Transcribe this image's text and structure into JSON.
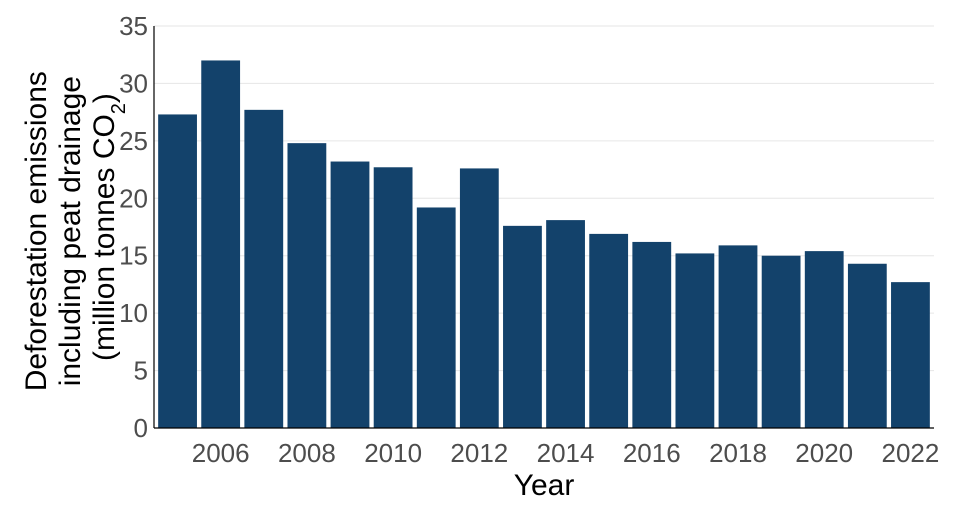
{
  "chart_data": {
    "type": "bar",
    "title": "",
    "xlabel": "Year",
    "ylabel_lines": [
      "Deforestation emissions",
      "including peat drainage"
    ],
    "ylabel_unit": {
      "prefix": "(million tonnes CO",
      "subscript": "2",
      "suffix": ")"
    },
    "categories": [
      2005,
      2006,
      2007,
      2008,
      2009,
      2010,
      2011,
      2012,
      2013,
      2014,
      2015,
      2016,
      2017,
      2018,
      2019,
      2020,
      2021,
      2022
    ],
    "values": [
      27.3,
      32.0,
      27.7,
      24.8,
      23.2,
      22.7,
      19.2,
      22.6,
      17.6,
      18.1,
      16.9,
      16.2,
      15.2,
      15.9,
      15.0,
      15.4,
      14.3,
      12.7
    ],
    "xticks": [
      "2006",
      "2008",
      "2010",
      "2012",
      "2014",
      "2016",
      "2018",
      "2020",
      "2022"
    ],
    "yticks": [
      0,
      5,
      10,
      15,
      20,
      25,
      30,
      35
    ],
    "ylim": [
      0,
      35
    ],
    "bar_color": "#13426b",
    "grid": "horizontal",
    "legend": "none"
  }
}
